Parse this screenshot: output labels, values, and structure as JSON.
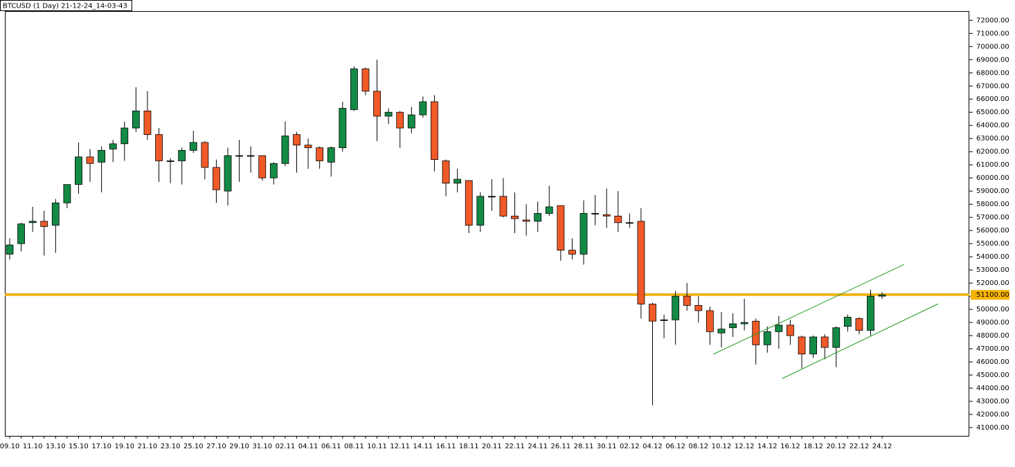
{
  "chart_data": {
    "type": "candlestick",
    "title": "BTCUSD (1 Day) 21-12-24_14-03-43",
    "categories": [
      "09.10",
      null,
      "11.10",
      null,
      "13.10",
      null,
      "15.10",
      null,
      "17.10",
      null,
      "19.10",
      null,
      "21.10",
      null,
      "23.10",
      null,
      "25.10",
      null,
      "27.10",
      null,
      "29.10",
      null,
      "31.10",
      null,
      "02.11",
      null,
      "04.11",
      null,
      "06.11",
      null,
      "08.11",
      null,
      "10.11",
      null,
      "12.11",
      null,
      "14.11",
      null,
      "16.11",
      null,
      "18.11",
      null,
      "20.11",
      null,
      "22.11",
      null,
      "24.11",
      null,
      "26.11",
      null,
      "28.11",
      null,
      "30.11",
      null,
      "02.12",
      null,
      "04.12",
      null,
      "06.12",
      null,
      "08.12",
      null,
      "10.12",
      null,
      "12.12",
      null,
      "14.12",
      null,
      "16.12",
      null,
      "18.12",
      null,
      "20.12",
      null,
      "22.12",
      null,
      "24.12"
    ],
    "open": [
      54200,
      55000,
      56600,
      56700,
      56400,
      58100,
      59500,
      61600,
      61200,
      62200,
      62600,
      63800,
      65100,
      63300,
      61300,
      61300,
      62100,
      62700,
      60800,
      59000,
      61700,
      61700,
      61700,
      60000,
      61100,
      63300,
      62500,
      62300,
      61200,
      62300,
      65200,
      68300,
      66600,
      64700,
      65000,
      63800,
      64800,
      65800,
      61300,
      59600,
      59800,
      56400,
      58600,
      58600,
      57100,
      56800,
      56700,
      57300,
      57900,
      54500,
      54200,
      57300,
      57200,
      57100,
      56600,
      56700,
      50400,
      49200,
      49200,
      51000,
      50300,
      49900,
      48200,
      48600,
      48900,
      49100,
      47300,
      48300,
      48800,
      47900,
      46600,
      47900,
      47100,
      48700,
      49300,
      48400,
      51000
    ],
    "high": [
      55400,
      56600,
      57800,
      57500,
      58400,
      59500,
      62700,
      62200,
      62400,
      62900,
      64300,
      66900,
      66600,
      63800,
      61500,
      62300,
      63600,
      62800,
      61400,
      62300,
      62900,
      62400,
      61700,
      61200,
      64300,
      63500,
      63000,
      62400,
      62400,
      65800,
      68500,
      68400,
      69000,
      65300,
      65100,
      65400,
      66200,
      66300,
      61400,
      60700,
      59800,
      58900,
      59900,
      60000,
      58900,
      58000,
      58200,
      59400,
      57900,
      55400,
      58300,
      58700,
      59200,
      59000,
      57300,
      57700,
      50500,
      49600,
      51400,
      52000,
      51000,
      50200,
      49800,
      49700,
      50800,
      49300,
      48700,
      49500,
      49200,
      48000,
      48000,
      48100,
      48700,
      49600,
      49400,
      51500,
      51300
    ],
    "low": [
      53800,
      54400,
      55900,
      54100,
      54300,
      57700,
      58800,
      59700,
      58900,
      61200,
      61300,
      63500,
      62900,
      59700,
      59600,
      59500,
      61900,
      59900,
      58100,
      57900,
      59700,
      60400,
      59800,
      59500,
      60900,
      60400,
      60700,
      60700,
      60100,
      62000,
      65100,
      66300,
      62800,
      64100,
      62300,
      63400,
      64600,
      60500,
      58600,
      58900,
      55800,
      55900,
      57500,
      57000,
      55800,
      55600,
      55900,
      57100,
      53700,
      53800,
      53400,
      56400,
      56200,
      55900,
      56200,
      49300,
      42700,
      47800,
      47300,
      49900,
      49000,
      47300,
      47100,
      47900,
      48400,
      45800,
      46700,
      47000,
      47300,
      45500,
      46300,
      46200,
      45600,
      48300,
      48100,
      48000,
      50800
    ],
    "close": [
      54900,
      56500,
      56700,
      56300,
      58100,
      59500,
      61600,
      61100,
      62100,
      62600,
      63800,
      65100,
      63300,
      61300,
      61300,
      62100,
      62700,
      60800,
      59100,
      61700,
      61700,
      61700,
      60000,
      61100,
      63200,
      62500,
      62300,
      61300,
      62300,
      65300,
      68300,
      66600,
      64700,
      65000,
      63800,
      64800,
      65800,
      61400,
      59600,
      59900,
      56400,
      58600,
      58600,
      57100,
      56900,
      56700,
      57300,
      57800,
      54500,
      54200,
      57300,
      57300,
      57100,
      56600,
      56600,
      50400,
      49100,
      49200,
      51000,
      50300,
      49900,
      48300,
      48500,
      48900,
      49000,
      47300,
      48300,
      48800,
      48000,
      46600,
      47900,
      47100,
      48600,
      49400,
      48400,
      51000,
      51100
    ],
    "up_color": "#138a45",
    "down_color": "#f05a28",
    "ylim": [
      40370,
      72700
    ],
    "yticks": [
      {
        "value": 41000,
        "label": "41000.00"
      },
      {
        "value": 42000,
        "label": "42000.00"
      },
      {
        "value": 43000,
        "label": "43000.00"
      },
      {
        "value": 44000,
        "label": "44000.00"
      },
      {
        "value": 45000,
        "label": "45000.00"
      },
      {
        "value": 46000,
        "label": "46000.00"
      },
      {
        "value": 47000,
        "label": "47000.00"
      },
      {
        "value": 48000,
        "label": "48000.00"
      },
      {
        "value": 49000,
        "label": "49000.00"
      },
      {
        "value": 50000,
        "label": "50000.00"
      },
      {
        "value": 51000,
        "label": "51000.00"
      },
      {
        "value": 52000,
        "label": "52000.00"
      },
      {
        "value": 53000,
        "label": "53000.00"
      },
      {
        "value": 54000,
        "label": "54000.00"
      },
      {
        "value": 55000,
        "label": "55000.00"
      },
      {
        "value": 56000,
        "label": "56000.00"
      },
      {
        "value": 57000,
        "label": "57000.00"
      },
      {
        "value": 58000,
        "label": "58000.00"
      },
      {
        "value": 59000,
        "label": "59000.00"
      },
      {
        "value": 60000,
        "label": "60000.00"
      },
      {
        "value": 61000,
        "label": "61000.00"
      },
      {
        "value": 62000,
        "label": "62000.00"
      },
      {
        "value": 63000,
        "label": "63000.00"
      },
      {
        "value": 64000,
        "label": "64000.00"
      },
      {
        "value": 65000,
        "label": "65000.00"
      },
      {
        "value": 66000,
        "label": "66000.00"
      },
      {
        "value": 67000,
        "label": "67000.00"
      },
      {
        "value": 68000,
        "label": "68000.00"
      },
      {
        "value": 69000,
        "label": "69000.00"
      },
      {
        "value": 70000,
        "label": "70000.00"
      },
      {
        "value": 71000,
        "label": "71000.00"
      },
      {
        "value": 72000,
        "label": "72000.00"
      }
    ],
    "hline": {
      "value": 51100,
      "label": "51100.00",
      "color": "#f5b300"
    },
    "trendlines": [
      {
        "values": [
          46580,
          53420
        ],
        "color": "#1a9a1a"
      },
      {
        "values": [
          44740,
          50420
        ],
        "color": "#1a9a1a"
      }
    ]
  }
}
